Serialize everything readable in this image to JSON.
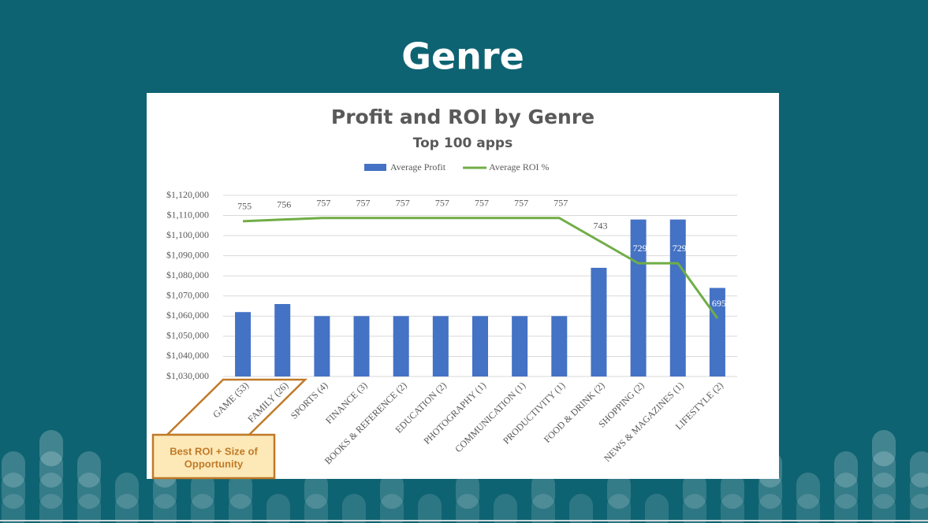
{
  "slide_title": "Genre",
  "chart_data": {
    "type": "bar",
    "title": "Profit and ROI by Genre",
    "subtitle": "Top 100 apps",
    "categories": [
      "GAME (53)",
      "FAMILY (26)",
      "SPORTS (4)",
      "FINANCE (3)",
      "BOOKS & REFERENCE (2)",
      "EDUCATION (2)",
      "PHOTOGRAPHY (1)",
      "COMMUNICATION (1)",
      "PRODUCTIVITY (1)",
      "FOOD & DRINK (2)",
      "SHOPPING (2)",
      "NEWS & MAGAZINES (1)",
      "LIFESTYLE (2)"
    ],
    "series": [
      {
        "name": "Average Profit",
        "type": "bar",
        "color": "#4472c4",
        "values": [
          1062000,
          1066000,
          1060000,
          1060000,
          1060000,
          1060000,
          1060000,
          1060000,
          1060000,
          1084000,
          1108000,
          1108000,
          1074000
        ]
      },
      {
        "name": "Average ROI %",
        "type": "line",
        "axis": "y2",
        "color": "#70ad47",
        "values": [
          755,
          756,
          757,
          757,
          757,
          757,
          757,
          757,
          757,
          743,
          729,
          729,
          695
        ]
      }
    ],
    "ylim": [
      1030000,
      1120000
    ],
    "yticks": [
      {
        "value": 1030000,
        "label": "$1,030,000"
      },
      {
        "value": 1040000,
        "label": "$1,040,000"
      },
      {
        "value": 1050000,
        "label": "$1,050,000"
      },
      {
        "value": 1060000,
        "label": "$1,060,000"
      },
      {
        "value": 1070000,
        "label": "$1,070,000"
      },
      {
        "value": 1080000,
        "label": "$1,080,000"
      },
      {
        "value": 1090000,
        "label": "$1,090,000"
      },
      {
        "value": 1100000,
        "label": "$1,100,000"
      },
      {
        "value": 1110000,
        "label": "$1,110,000"
      },
      {
        "value": 1120000,
        "label": "$1,120,000"
      }
    ],
    "y2lim": [
      659,
      771
    ],
    "grid": true,
    "legend": "top",
    "annotation": [
      "Best ROI + Size of",
      "Opportunity"
    ]
  }
}
